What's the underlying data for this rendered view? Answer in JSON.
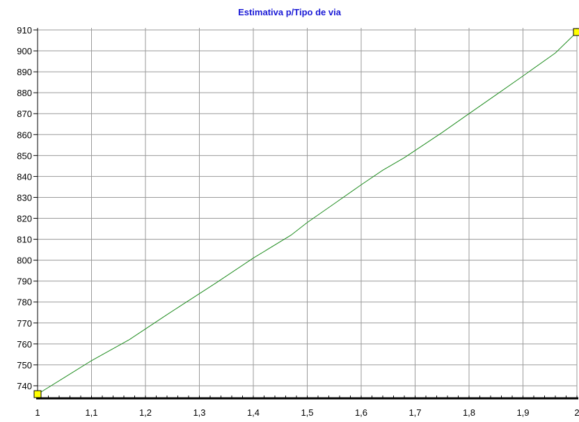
{
  "colors": {
    "title": "#1a1ad6",
    "line": "#1e8c1e",
    "marker_fill": "#ffff00",
    "grid": "#9a9a9a",
    "axis": "#000000"
  },
  "chart_data": {
    "type": "line",
    "title": "Estimativa p/Tipo de via",
    "xlabel": "",
    "ylabel": "",
    "xlim": [
      1,
      2
    ],
    "ylim": [
      734,
      911
    ],
    "x_ticks": [
      1,
      1.1,
      1.2,
      1.3,
      1.4,
      1.5,
      1.6,
      1.7,
      1.8,
      1.9,
      2
    ],
    "x_tick_labels": [
      "1",
      "1,1",
      "1,2",
      "1,3",
      "1,4",
      "1,5",
      "1,6",
      "1,7",
      "1,8",
      "1,9",
      "2"
    ],
    "y_ticks": [
      740,
      750,
      760,
      770,
      780,
      790,
      800,
      810,
      820,
      830,
      840,
      850,
      860,
      870,
      880,
      890,
      900,
      910
    ],
    "y_tick_labels": [
      "740",
      "750",
      "760",
      "770",
      "780",
      "790",
      "800",
      "810",
      "820",
      "830",
      "840",
      "850",
      "860",
      "870",
      "880",
      "890",
      "900",
      "910"
    ],
    "grid": true,
    "legend": "none",
    "series": [
      {
        "x": [
          1,
          1.05,
          1.1,
          1.17,
          1.24,
          1.27,
          1.33,
          1.4,
          1.47,
          1.5,
          1.55,
          1.6,
          1.64,
          1.68,
          1.75,
          1.8,
          1.85,
          1.9,
          1.96,
          2
        ],
        "values": [
          736,
          744,
          752,
          762,
          774,
          779,
          789,
          801,
          812,
          818,
          827,
          836,
          843,
          849,
          861,
          870,
          879,
          888,
          899,
          909
        ],
        "markers_at_index": [
          0,
          19
        ]
      }
    ]
  }
}
